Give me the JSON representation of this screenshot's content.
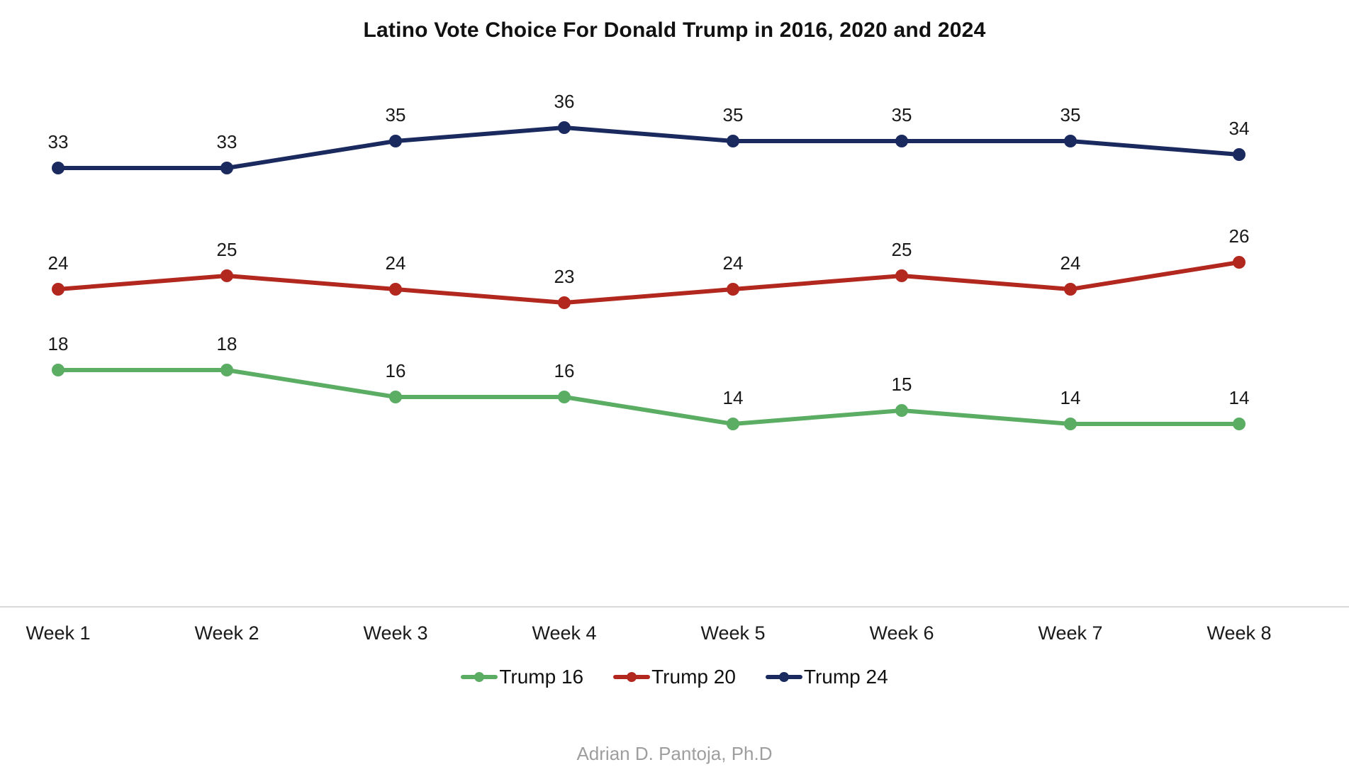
{
  "title": "Latino Vote Choice For Donald Trump in 2016, 2020 and 2024",
  "footer": "Adrian D. Pantoja, Ph.D",
  "chart_data": {
    "type": "line",
    "title": "Latino Vote Choice For Donald Trump in 2016, 2020 and 2024",
    "categories": [
      "Week 1",
      "Week 2",
      "Week 3",
      "Week 4",
      "Week 5",
      "Week 6",
      "Week 7",
      "Week 8"
    ],
    "series": [
      {
        "name": "Trump 16",
        "color": "#5BAD64",
        "values": [
          18,
          18,
          16,
          16,
          14,
          15,
          14,
          14
        ]
      },
      {
        "name": "Trump 20",
        "color": "#B2271E",
        "values": [
          24,
          25,
          24,
          23,
          24,
          25,
          24,
          26
        ]
      },
      {
        "name": "Trump 24",
        "color": "#1A2A5E",
        "values": [
          33,
          33,
          35,
          36,
          35,
          35,
          35,
          34
        ]
      }
    ],
    "xlabel": "",
    "ylabel": "",
    "ylim": [
      0,
      45
    ],
    "grid": false,
    "y_axis_visible": false,
    "legend_position": "bottom",
    "data_labels": true,
    "colors": {
      "axis_line": "#D9D9D9",
      "tick_label": "#1A1A1A",
      "data_label": "#1A1A1A",
      "attribution": "#9E9E9E"
    }
  }
}
